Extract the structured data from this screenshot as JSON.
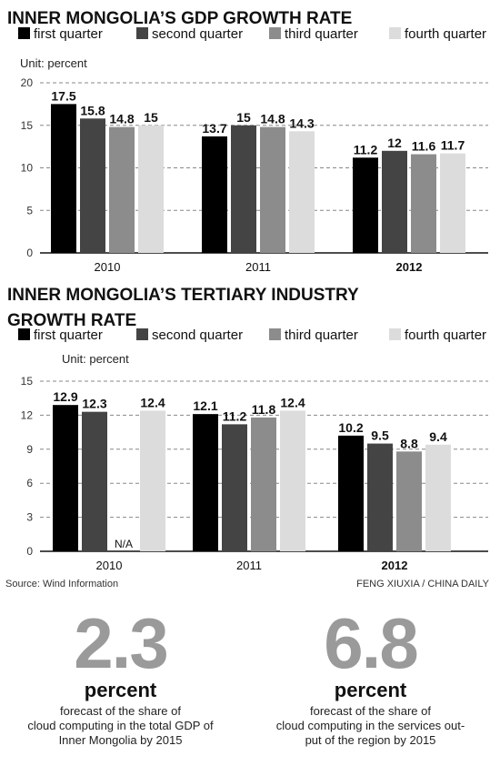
{
  "colors": {
    "first_quarter": "#000000",
    "second_quarter": "#444444",
    "third_quarter": "#8c8c8c",
    "fourth_quarter": "#dcdcdc",
    "stat_number": "#9a9a9a"
  },
  "chart_data": [
    {
      "id": "gdp",
      "type": "bar",
      "title": [
        "INNER MONGOLIA’S GDP GROWTH RATE"
      ],
      "unit": "Unit: percent",
      "categories": [
        "2010",
        "2011",
        "2012"
      ],
      "bold_categories": [
        "2012"
      ],
      "series": [
        {
          "name": "first quarter",
          "values": [
            17.5,
            13.7,
            11.2
          ]
        },
        {
          "name": "second quarter",
          "values": [
            15.8,
            15,
            12
          ]
        },
        {
          "name": "third quarter",
          "values": [
            14.8,
            14.8,
            11.6
          ]
        },
        {
          "name": "fourth quarter",
          "values": [
            15,
            14.3,
            11.7
          ]
        }
      ],
      "value_labels": [
        [
          "17.5",
          "13.7",
          "11.2"
        ],
        [
          "15.8",
          "15",
          "12"
        ],
        [
          "14.8",
          "14.8",
          "11.6"
        ],
        [
          "15",
          "14.3",
          "11.7"
        ]
      ],
      "ylim": [
        0,
        20
      ],
      "yticks": [
        0,
        5,
        10,
        15,
        20
      ],
      "grid": "dashed horizontal",
      "legend": "top"
    },
    {
      "id": "tertiary",
      "type": "bar",
      "title": [
        "INNER MONGOLIA’S TERTIARY INDUSTRY",
        "GROWTH RATE"
      ],
      "unit": "Unit: percent",
      "categories": [
        "2010",
        "2011",
        "2012"
      ],
      "bold_categories": [
        "2012"
      ],
      "series": [
        {
          "name": "first quarter",
          "values": [
            12.9,
            12.1,
            10.2
          ]
        },
        {
          "name": "second quarter",
          "values": [
            12.3,
            11.2,
            9.5
          ]
        },
        {
          "name": "third quarter",
          "values": [
            null,
            11.8,
            8.8
          ]
        },
        {
          "name": "fourth quarter",
          "values": [
            12.4,
            12.4,
            9.4
          ]
        }
      ],
      "value_labels": [
        [
          "12.9",
          "12.1",
          "10.2"
        ],
        [
          "12.3",
          "11.2",
          "9.5"
        ],
        [
          "N/A",
          "11.8",
          "8.8"
        ],
        [
          "12.4",
          "12.4",
          "9.4"
        ]
      ],
      "ylim": [
        0,
        15
      ],
      "yticks": [
        0,
        3,
        6,
        9,
        12,
        15
      ],
      "grid": "dashed horizontal",
      "legend": "top"
    }
  ],
  "source": "Source: Wind Information",
  "credit": "FENG XIUXIA / CHINA DAILY",
  "stats": [
    {
      "number": "2.3",
      "unit": "percent",
      "lines": [
        "forecast of the share of",
        "cloud computing in the total GDP of",
        "Inner Mongolia by 2015"
      ]
    },
    {
      "number": "6.8",
      "unit": "percent",
      "lines": [
        "forecast of the share of",
        "cloud computing in the services out-",
        "put of the region by 2015"
      ]
    }
  ]
}
